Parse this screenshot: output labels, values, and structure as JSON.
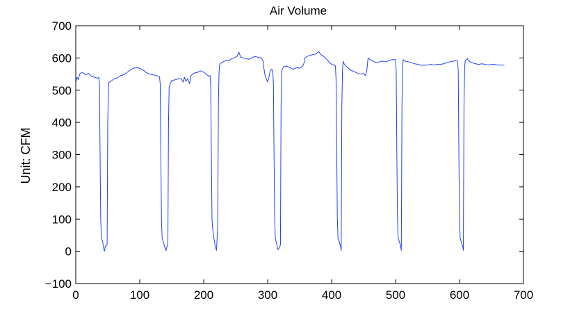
{
  "colors": {
    "line": "#1f3fff",
    "axes": "#000000",
    "background": "#ffffff"
  },
  "chart_data": {
    "type": "line",
    "title": "Air Volume",
    "xlabel": "",
    "ylabel": "Unit: CFM",
    "xlim": [
      0,
      700
    ],
    "ylim": [
      -100,
      700
    ],
    "xticks": [
      0,
      100,
      200,
      300,
      400,
      500,
      600,
      700
    ],
    "yticks": [
      -100,
      0,
      100,
      200,
      300,
      400,
      500,
      600,
      700
    ],
    "xtick_labels": [
      "0",
      "100",
      "200",
      "300",
      "400",
      "500",
      "600",
      "700"
    ],
    "ytick_labels": [
      "−100",
      "0",
      "100",
      "200",
      "300",
      "400",
      "500",
      "600",
      "700"
    ],
    "grid": false,
    "legend": "none",
    "series": [
      {
        "points": [
          [
            0,
            525
          ],
          [
            2,
            540
          ],
          [
            4,
            533
          ],
          [
            6,
            550
          ],
          [
            10,
            555
          ],
          [
            15,
            548
          ],
          [
            20,
            552
          ],
          [
            25,
            542
          ],
          [
            30,
            540
          ],
          [
            34,
            537
          ],
          [
            36,
            540
          ],
          [
            37,
            520
          ],
          [
            38,
            300
          ],
          [
            39,
            100
          ],
          [
            40,
            42
          ],
          [
            42,
            30
          ],
          [
            44,
            5
          ],
          [
            45,
            1
          ],
          [
            46,
            15
          ],
          [
            48,
            18
          ],
          [
            49,
            20
          ],
          [
            50,
            400
          ],
          [
            51,
            510
          ],
          [
            52,
            525
          ],
          [
            55,
            528
          ],
          [
            60,
            535
          ],
          [
            65,
            538
          ],
          [
            70,
            545
          ],
          [
            75,
            548
          ],
          [
            80,
            555
          ],
          [
            85,
            562
          ],
          [
            90,
            568
          ],
          [
            95,
            570
          ],
          [
            100,
            568
          ],
          [
            105,
            563
          ],
          [
            110,
            555
          ],
          [
            115,
            550
          ],
          [
            120,
            548
          ],
          [
            125,
            546
          ],
          [
            130,
            543
          ],
          [
            131,
            540
          ],
          [
            132,
            520
          ],
          [
            133,
            300
          ],
          [
            134,
            100
          ],
          [
            135,
            40
          ],
          [
            137,
            28
          ],
          [
            139,
            15
          ],
          [
            141,
            2
          ],
          [
            143,
            18
          ],
          [
            144,
            20
          ],
          [
            145,
            400
          ],
          [
            146,
            510
          ],
          [
            148,
            520
          ],
          [
            150,
            530
          ],
          [
            155,
            532
          ],
          [
            160,
            535
          ],
          [
            165,
            535
          ],
          [
            168,
            525
          ],
          [
            170,
            540
          ],
          [
            172,
            528
          ],
          [
            175,
            535
          ],
          [
            178,
            520
          ],
          [
            180,
            545
          ],
          [
            185,
            553
          ],
          [
            190,
            555
          ],
          [
            195,
            560
          ],
          [
            200,
            556
          ],
          [
            205,
            548
          ],
          [
            208,
            543
          ],
          [
            210,
            545
          ],
          [
            211,
            520
          ],
          [
            212,
            300
          ],
          [
            213,
            100
          ],
          [
            214,
            70
          ],
          [
            216,
            40
          ],
          [
            218,
            15
          ],
          [
            220,
            3
          ],
          [
            222,
            80
          ],
          [
            223,
            460
          ],
          [
            224,
            555
          ],
          [
            225,
            580
          ],
          [
            228,
            585
          ],
          [
            232,
            590
          ],
          [
            236,
            592
          ],
          [
            240,
            592
          ],
          [
            244,
            598
          ],
          [
            248,
            600
          ],
          [
            252,
            605
          ],
          [
            255,
            618
          ],
          [
            258,
            602
          ],
          [
            262,
            600
          ],
          [
            266,
            598
          ],
          [
            270,
            596
          ],
          [
            275,
            600
          ],
          [
            280,
            605
          ],
          [
            285,
            602
          ],
          [
            290,
            600
          ],
          [
            293,
            590
          ],
          [
            294,
            570
          ],
          [
            296,
            545
          ],
          [
            298,
            535
          ],
          [
            300,
            525
          ],
          [
            302,
            540
          ],
          [
            304,
            560
          ],
          [
            306,
            565
          ],
          [
            308,
            560
          ],
          [
            309,
            520
          ],
          [
            310,
            300
          ],
          [
            311,
            100
          ],
          [
            312,
            40
          ],
          [
            314,
            25
          ],
          [
            316,
            5
          ],
          [
            318,
            10
          ],
          [
            320,
            20
          ],
          [
            321,
            450
          ],
          [
            322,
            560
          ],
          [
            325,
            573
          ],
          [
            330,
            575
          ],
          [
            335,
            570
          ],
          [
            340,
            565
          ],
          [
            345,
            570
          ],
          [
            350,
            568
          ],
          [
            355,
            575
          ],
          [
            357,
            585
          ],
          [
            358,
            600
          ],
          [
            362,
            605
          ],
          [
            366,
            608
          ],
          [
            370,
            610
          ],
          [
            375,
            612
          ],
          [
            380,
            620
          ],
          [
            383,
            610
          ],
          [
            386,
            608
          ],
          [
            390,
            600
          ],
          [
            395,
            590
          ],
          [
            400,
            580
          ],
          [
            404,
            578
          ],
          [
            406,
            575
          ],
          [
            407,
            530
          ],
          [
            408,
            300
          ],
          [
            409,
            100
          ],
          [
            410,
            40
          ],
          [
            412,
            30
          ],
          [
            414,
            15
          ],
          [
            415,
            3
          ],
          [
            416,
            450
          ],
          [
            417,
            560
          ],
          [
            418,
            590
          ],
          [
            420,
            580
          ],
          [
            425,
            570
          ],
          [
            430,
            562
          ],
          [
            435,
            558
          ],
          [
            440,
            553
          ],
          [
            445,
            550
          ],
          [
            450,
            552
          ],
          [
            453,
            545
          ],
          [
            455,
            560
          ],
          [
            457,
            600
          ],
          [
            460,
            595
          ],
          [
            465,
            590
          ],
          [
            470,
            585
          ],
          [
            475,
            588
          ],
          [
            480,
            590
          ],
          [
            485,
            588
          ],
          [
            490,
            592
          ],
          [
            495,
            595
          ],
          [
            500,
            595
          ],
          [
            501,
            560
          ],
          [
            502,
            300
          ],
          [
            503,
            100
          ],
          [
            504,
            40
          ],
          [
            506,
            30
          ],
          [
            508,
            15
          ],
          [
            509,
            3
          ],
          [
            510,
            450
          ],
          [
            511,
            570
          ],
          [
            512,
            595
          ],
          [
            515,
            590
          ],
          [
            520,
            588
          ],
          [
            525,
            585
          ],
          [
            530,
            582
          ],
          [
            535,
            580
          ],
          [
            540,
            577
          ],
          [
            545,
            578
          ],
          [
            550,
            578
          ],
          [
            555,
            580
          ],
          [
            560,
            578
          ],
          [
            565,
            580
          ],
          [
            570,
            580
          ],
          [
            575,
            582
          ],
          [
            580,
            585
          ],
          [
            585,
            588
          ],
          [
            590,
            590
          ],
          [
            595,
            592
          ],
          [
            597,
            590
          ],
          [
            598,
            560
          ],
          [
            599,
            300
          ],
          [
            600,
            100
          ],
          [
            601,
            40
          ],
          [
            603,
            28
          ],
          [
            605,
            15
          ],
          [
            606,
            3
          ],
          [
            607,
            450
          ],
          [
            608,
            570
          ],
          [
            609,
            592
          ],
          [
            612,
            598
          ],
          [
            615,
            590
          ],
          [
            620,
            585
          ],
          [
            625,
            582
          ],
          [
            630,
            580
          ],
          [
            635,
            582
          ],
          [
            640,
            580
          ],
          [
            645,
            578
          ],
          [
            650,
            580
          ],
          [
            655,
            580
          ],
          [
            660,
            578
          ],
          [
            665,
            578
          ],
          [
            670,
            578
          ]
        ]
      }
    ]
  }
}
